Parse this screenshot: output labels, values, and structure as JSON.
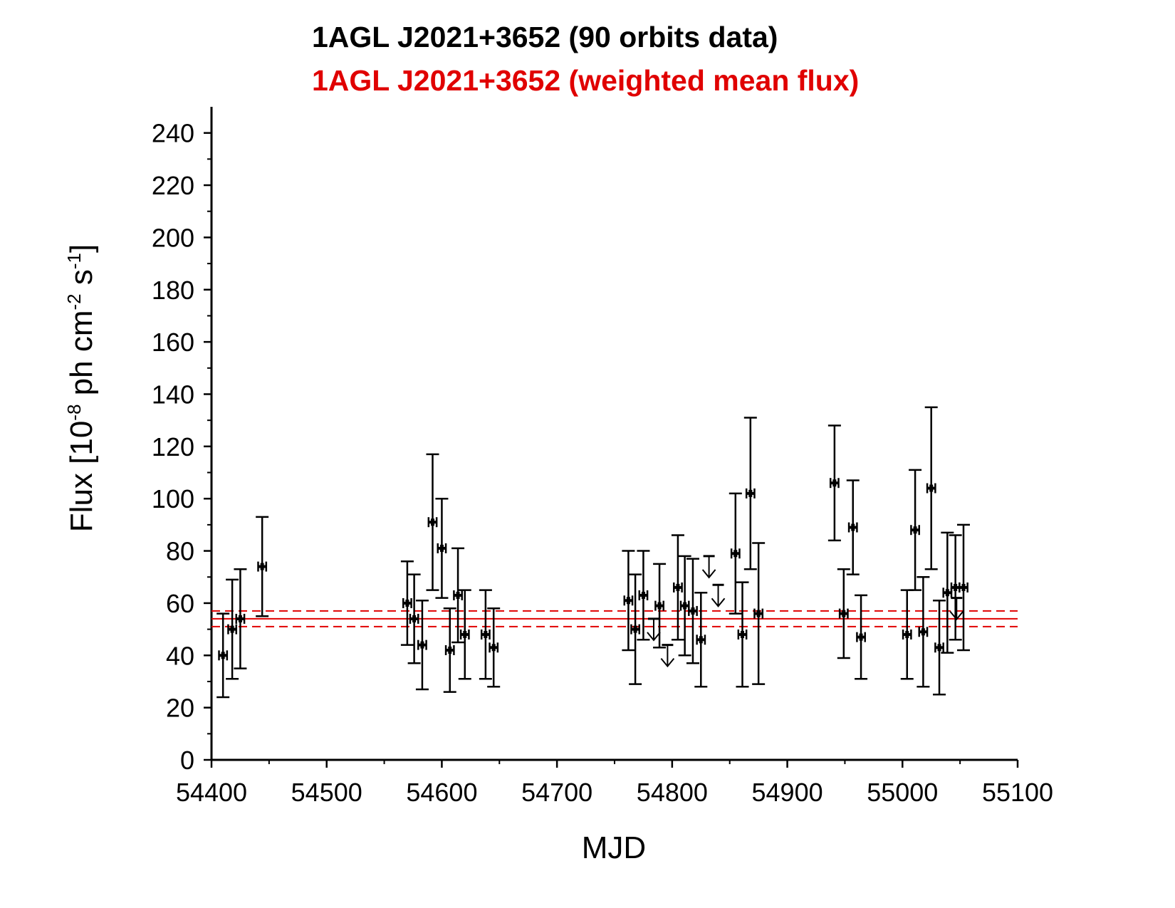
{
  "title_line1": "1AGL J2021+3652 (90 orbits data)",
  "title_line2": "1AGL J2021+3652 (weighted mean flux)",
  "colors": {
    "data": "#000000",
    "mean": "#e00000"
  },
  "chart_data": {
    "type": "scatter",
    "title": "1AGL J2021+3652 (90 orbits data) / 1AGL J2021+3652 (weighted mean flux)",
    "xlabel": "MJD",
    "ylabel": {
      "prefix": "Flux [10",
      "exp1": "-8",
      "mid": " ph cm",
      "exp2": "-2",
      "mid2": " s",
      "exp3": "-1",
      "suffix": "]"
    },
    "xlim": [
      54400,
      55100
    ],
    "ylim": [
      0,
      250
    ],
    "xticks": [
      54400,
      54500,
      54600,
      54700,
      54800,
      54900,
      55000,
      55100
    ],
    "yticks": [
      0,
      20,
      40,
      60,
      80,
      100,
      120,
      140,
      160,
      180,
      200,
      220,
      240
    ],
    "xerr": 3.5,
    "series": [
      {
        "name": "90 orbits data",
        "points": [
          {
            "x": 54410,
            "y": 40,
            "lo": 24,
            "hi": 56
          },
          {
            "x": 54418,
            "y": 50,
            "lo": 31,
            "hi": 69
          },
          {
            "x": 54425,
            "y": 54,
            "lo": 35,
            "hi": 73
          },
          {
            "x": 54444,
            "y": 74,
            "lo": 55,
            "hi": 93
          },
          {
            "x": 54570,
            "y": 60,
            "lo": 44,
            "hi": 76
          },
          {
            "x": 54576,
            "y": 54,
            "lo": 37,
            "hi": 71
          },
          {
            "x": 54583,
            "y": 44,
            "lo": 27,
            "hi": 61
          },
          {
            "x": 54592,
            "y": 91,
            "lo": 65,
            "hi": 117
          },
          {
            "x": 54600,
            "y": 81,
            "lo": 62,
            "hi": 100
          },
          {
            "x": 54607,
            "y": 42,
            "lo": 26,
            "hi": 58
          },
          {
            "x": 54614,
            "y": 63,
            "lo": 45,
            "hi": 81
          },
          {
            "x": 54620,
            "y": 48,
            "lo": 31,
            "hi": 65
          },
          {
            "x": 54638,
            "y": 48,
            "lo": 31,
            "hi": 65
          },
          {
            "x": 54645,
            "y": 43,
            "lo": 28,
            "hi": 58
          },
          {
            "x": 54762,
            "y": 61,
            "lo": 42,
            "hi": 80
          },
          {
            "x": 54768,
            "y": 50,
            "lo": 29,
            "hi": 71
          },
          {
            "x": 54775,
            "y": 63,
            "lo": 46,
            "hi": 80
          },
          {
            "x": 54789,
            "y": 59,
            "lo": 43,
            "hi": 75
          },
          {
            "x": 54805,
            "y": 66,
            "lo": 46,
            "hi": 86
          },
          {
            "x": 54811,
            "y": 59,
            "lo": 40,
            "hi": 78
          },
          {
            "x": 54818,
            "y": 57,
            "lo": 37,
            "hi": 77
          },
          {
            "x": 54825,
            "y": 46,
            "lo": 28,
            "hi": 64
          },
          {
            "x": 54855,
            "y": 79,
            "lo": 56,
            "hi": 102
          },
          {
            "x": 54861,
            "y": 48,
            "lo": 28,
            "hi": 68
          },
          {
            "x": 54868,
            "y": 102,
            "lo": 73,
            "hi": 131
          },
          {
            "x": 54875,
            "y": 56,
            "lo": 29,
            "hi": 83
          },
          {
            "x": 54941,
            "y": 106,
            "lo": 84,
            "hi": 128
          },
          {
            "x": 54949,
            "y": 56,
            "lo": 39,
            "hi": 73
          },
          {
            "x": 54957,
            "y": 89,
            "lo": 71,
            "hi": 107
          },
          {
            "x": 54964,
            "y": 47,
            "lo": 31,
            "hi": 63
          },
          {
            "x": 55004,
            "y": 48,
            "lo": 31,
            "hi": 65
          },
          {
            "x": 55011,
            "y": 88,
            "lo": 65,
            "hi": 111
          },
          {
            "x": 55018,
            "y": 49,
            "lo": 28,
            "hi": 70
          },
          {
            "x": 55025,
            "y": 104,
            "lo": 73,
            "hi": 135
          },
          {
            "x": 55032,
            "y": 43,
            "lo": 25,
            "hi": 61
          },
          {
            "x": 55039,
            "y": 64,
            "lo": 41,
            "hi": 87
          },
          {
            "x": 55046,
            "y": 66,
            "lo": 46,
            "hi": 86
          },
          {
            "x": 55053,
            "y": 66,
            "lo": 42,
            "hi": 90
          }
        ]
      },
      {
        "name": "upper limits",
        "upper_limits": [
          {
            "x": 54784,
            "y": 54
          },
          {
            "x": 54796,
            "y": 44
          },
          {
            "x": 54832,
            "y": 78
          },
          {
            "x": 54840,
            "y": 67
          },
          {
            "x": 55047,
            "y": 62
          }
        ]
      }
    ],
    "weighted_mean": {
      "value": 54,
      "lower": 51,
      "upper": 57,
      "xrange": [
        54400,
        55100
      ]
    }
  }
}
